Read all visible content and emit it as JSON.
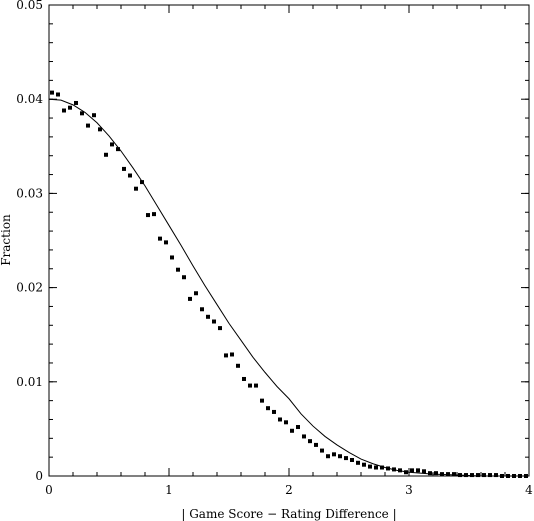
{
  "chart_data": {
    "type": "scatter",
    "title": "",
    "xlabel": "| Game Score − Rating Difference |",
    "ylabel": "Fraction",
    "xlim": [
      0,
      4
    ],
    "ylim": [
      0,
      0.05
    ],
    "grid": false,
    "x_ticks": [
      {
        "value": 0,
        "label": "0"
      },
      {
        "value": 1,
        "label": "1"
      },
      {
        "value": 2,
        "label": "2"
      },
      {
        "value": 3,
        "label": "3"
      },
      {
        "value": 4,
        "label": "4"
      }
    ],
    "y_ticks": [
      {
        "value": 0,
        "label": "0"
      },
      {
        "value": 0.01,
        "label": "0.01"
      },
      {
        "value": 0.02,
        "label": "0.02"
      },
      {
        "value": 0.03,
        "label": "0.03"
      },
      {
        "value": 0.04,
        "label": "0.04"
      },
      {
        "value": 0.05,
        "label": "0.05"
      }
    ],
    "series": [
      {
        "kind": "points",
        "x": [
          0.025,
          0.075,
          0.125,
          0.175,
          0.225,
          0.275,
          0.325,
          0.375,
          0.425,
          0.475,
          0.525,
          0.575,
          0.625,
          0.675,
          0.725,
          0.775,
          0.825,
          0.875,
          0.925,
          0.975,
          1.025,
          1.075,
          1.125,
          1.175,
          1.225,
          1.275,
          1.325,
          1.375,
          1.425,
          1.475,
          1.525,
          1.575,
          1.625,
          1.675,
          1.725,
          1.775,
          1.825,
          1.875,
          1.925,
          1.975,
          2.025,
          2.075,
          2.125,
          2.175,
          2.225,
          2.275,
          2.325,
          2.375,
          2.425,
          2.475,
          2.525,
          2.575,
          2.625,
          2.675,
          2.725,
          2.775,
          2.825,
          2.875,
          2.925,
          2.975,
          3.025,
          3.075,
          3.125,
          3.175,
          3.225,
          3.275,
          3.325,
          3.375,
          3.425,
          3.475,
          3.525,
          3.575,
          3.625,
          3.675,
          3.725,
          3.775,
          3.825,
          3.875,
          3.925,
          3.975
        ],
        "y": [
          0.0407,
          0.0405,
          0.0388,
          0.0391,
          0.0396,
          0.0385,
          0.0372,
          0.0383,
          0.0368,
          0.0341,
          0.0352,
          0.0347,
          0.0326,
          0.0319,
          0.0305,
          0.0312,
          0.0277,
          0.0278,
          0.0252,
          0.0248,
          0.0232,
          0.0219,
          0.0211,
          0.0188,
          0.0194,
          0.0177,
          0.0169,
          0.0164,
          0.0157,
          0.0128,
          0.0129,
          0.0117,
          0.0103,
          0.0096,
          0.0096,
          0.008,
          0.0072,
          0.0068,
          0.006,
          0.0057,
          0.0048,
          0.0052,
          0.0042,
          0.0037,
          0.0033,
          0.0027,
          0.0021,
          0.0023,
          0.0021,
          0.0019,
          0.0017,
          0.0014,
          0.0012,
          0.001,
          0.0009,
          0.0009,
          0.0008,
          0.0007,
          0.0006,
          0.0004,
          0.0006,
          0.0006,
          0.0005,
          0.0003,
          0.0003,
          0.0002,
          0.0002,
          0.0002,
          0.0001,
          0.0001,
          0.0001,
          0.0001,
          0.0001,
          0.0001,
          0.0001,
          0.0,
          0.0,
          0.0,
          0.0,
          0.0
        ]
      },
      {
        "kind": "curve",
        "x": [
          0,
          0.1,
          0.2,
          0.3,
          0.4,
          0.5,
          0.6,
          0.7,
          0.8,
          0.9,
          1.0,
          1.1,
          1.2,
          1.3,
          1.4,
          1.5,
          1.6,
          1.7,
          1.8,
          1.9,
          2.0,
          2.1,
          2.2,
          2.3,
          2.4,
          2.5,
          2.6,
          2.7,
          2.8,
          2.9,
          3.0,
          3.2,
          3.4,
          3.6,
          3.8,
          4.0
        ],
        "y": [
          0.04,
          0.0399,
          0.0394,
          0.0386,
          0.0375,
          0.0361,
          0.0345,
          0.0327,
          0.0308,
          0.0287,
          0.0266,
          0.0245,
          0.0223,
          0.0202,
          0.0182,
          0.0162,
          0.0144,
          0.0126,
          0.011,
          0.0095,
          0.0082,
          0.0066,
          0.0053,
          0.0042,
          0.0033,
          0.0025,
          0.0018,
          0.0013,
          0.0009,
          0.0006,
          0.0004,
          0.0002,
          0.0001,
          0.0,
          0.0,
          0.0
        ]
      }
    ]
  }
}
